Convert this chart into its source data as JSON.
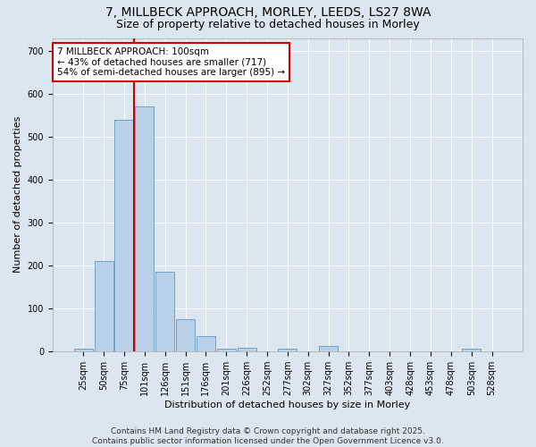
{
  "title_line1": "7, MILLBECK APPROACH, MORLEY, LEEDS, LS27 8WA",
  "title_line2": "Size of property relative to detached houses in Morley",
  "xlabel": "Distribution of detached houses by size in Morley",
  "ylabel": "Number of detached properties",
  "categories": [
    "25sqm",
    "50sqm",
    "75sqm",
    "101sqm",
    "126sqm",
    "151sqm",
    "176sqm",
    "201sqm",
    "226sqm",
    "252sqm",
    "277sqm",
    "302sqm",
    "327sqm",
    "352sqm",
    "377sqm",
    "403sqm",
    "428sqm",
    "453sqm",
    "478sqm",
    "503sqm",
    "528sqm"
  ],
  "values": [
    5,
    210,
    540,
    570,
    185,
    75,
    35,
    5,
    8,
    0,
    5,
    0,
    12,
    0,
    0,
    0,
    0,
    0,
    0,
    5,
    0
  ],
  "bar_color": "#b8d0e8",
  "bar_edge_color": "#6699bb",
  "vline_position": 2.5,
  "vline_color": "#cc0000",
  "annotation_text": "7 MILLBECK APPROACH: 100sqm\n← 43% of detached houses are smaller (717)\n54% of semi-detached houses are larger (895) →",
  "annotation_box_facecolor": "#ffffff",
  "annotation_box_edgecolor": "#cc0000",
  "ylim": [
    0,
    730
  ],
  "yticks": [
    0,
    100,
    200,
    300,
    400,
    500,
    600,
    700
  ],
  "background_color": "#dce6f0",
  "plot_bg_color": "#dce6f0",
  "footer_text": "Contains HM Land Registry data © Crown copyright and database right 2025.\nContains public sector information licensed under the Open Government Licence v3.0.",
  "title_fontsize": 10,
  "subtitle_fontsize": 9,
  "axis_label_fontsize": 8,
  "tick_fontsize": 7,
  "annotation_fontsize": 7.5,
  "footer_fontsize": 6.5,
  "grid_color": "#ffffff"
}
